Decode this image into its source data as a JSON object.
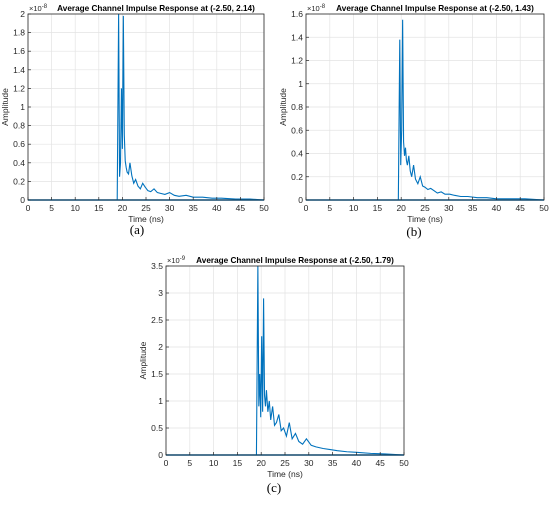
{
  "chart_data": [
    {
      "type": "line",
      "panel_label": "(a)",
      "title": "Average Channel Impulse Response at (-2.50, 2.14)",
      "xlabel": "Time (ns)",
      "ylabel": "Amplitude",
      "y_exponent_label": "×10",
      "y_exponent": "-8",
      "xlim": [
        0,
        50
      ],
      "ylim": [
        0,
        2
      ],
      "xticks": [
        "0",
        "5",
        "10",
        "15",
        "20",
        "25",
        "30",
        "35",
        "40",
        "45",
        "50"
      ],
      "yticks": [
        "0",
        "0.2",
        "0.4",
        "0.6",
        "0.8",
        "1",
        "1.2",
        "1.4",
        "1.6",
        "1.8",
        "2"
      ],
      "grid": true,
      "line_color": "#0072BD",
      "series": [
        {
          "x": [
            0,
            5,
            10,
            15,
            18.9,
            19.2,
            19.4,
            19.6,
            19.8,
            20.0,
            20.2,
            20.4,
            20.6,
            20.8,
            21.0,
            21.3,
            21.6,
            22.0,
            22.4,
            22.8,
            23.3,
            23.8,
            24.3,
            24.8,
            25.4,
            26.0,
            26.7,
            27.4,
            28.2,
            29.0,
            30.0,
            31.0,
            32.0,
            33.5,
            35.0,
            37.0,
            39.0,
            41.0,
            44.0,
            47.0,
            50.0
          ],
          "y": [
            0,
            0,
            0,
            0,
            0,
            2.0,
            0.25,
            0.4,
            1.2,
            0.55,
            1.98,
            0.7,
            0.42,
            0.35,
            0.3,
            0.28,
            0.4,
            0.26,
            0.18,
            0.22,
            0.15,
            0.12,
            0.18,
            0.14,
            0.1,
            0.09,
            0.12,
            0.08,
            0.07,
            0.06,
            0.08,
            0.05,
            0.04,
            0.05,
            0.03,
            0.03,
            0.02,
            0.02,
            0.01,
            0.01,
            0
          ]
        }
      ]
    },
    {
      "type": "line",
      "panel_label": "(b)",
      "title": "Average Channel Impulse Response at (-2.50, 1.43)",
      "xlabel": "Time (ns)",
      "ylabel": "Amplitude",
      "y_exponent_label": "×10",
      "y_exponent": "-8",
      "xlim": [
        0,
        50
      ],
      "ylim": [
        0,
        1.6
      ],
      "xticks": [
        "0",
        "5",
        "10",
        "15",
        "20",
        "25",
        "30",
        "35",
        "40",
        "45",
        "50"
      ],
      "yticks": [
        "0",
        "0.2",
        "0.4",
        "0.6",
        "0.8",
        "1",
        "1.2",
        "1.4",
        "1.6"
      ],
      "grid": true,
      "line_color": "#0072BD",
      "series": [
        {
          "x": [
            0,
            5,
            10,
            15,
            19.4,
            19.7,
            19.9,
            20.1,
            20.3,
            20.5,
            20.7,
            20.9,
            21.1,
            21.3,
            21.6,
            21.9,
            22.2,
            22.6,
            23.0,
            23.5,
            24.0,
            24.5,
            25.0,
            25.6,
            26.2,
            26.9,
            27.6,
            28.4,
            29.2,
            30.2,
            31.2,
            32.5,
            34.0,
            36.0,
            38.0,
            40.0,
            43.0,
            46.0,
            50.0
          ],
          "y": [
            0,
            0,
            0,
            0,
            0,
            1.38,
            0.3,
            0.6,
            1.55,
            0.5,
            0.38,
            0.45,
            0.34,
            0.3,
            0.38,
            0.25,
            0.2,
            0.3,
            0.18,
            0.14,
            0.2,
            0.12,
            0.11,
            0.09,
            0.1,
            0.08,
            0.06,
            0.07,
            0.05,
            0.05,
            0.04,
            0.03,
            0.03,
            0.02,
            0.02,
            0.01,
            0.01,
            0.01,
            0
          ]
        }
      ]
    },
    {
      "type": "line",
      "panel_label": "(c)",
      "title": "Average Channel Impulse Response at (-2.50, 1.79)",
      "xlabel": "Time (ns)",
      "ylabel": "Amplitude",
      "y_exponent_label": "×10",
      "y_exponent": "-9",
      "xlim": [
        0,
        50
      ],
      "ylim": [
        0,
        3.5
      ],
      "xticks": [
        "0",
        "5",
        "10",
        "15",
        "20",
        "25",
        "30",
        "35",
        "40",
        "45",
        "50"
      ],
      "yticks": [
        "0",
        "0.5",
        "1",
        "1.5",
        "2",
        "2.5",
        "3",
        "3.5"
      ],
      "grid": true,
      "line_color": "#0072BD",
      "series": [
        {
          "x": [
            0,
            5,
            10,
            15,
            19.0,
            19.3,
            19.5,
            19.7,
            19.9,
            20.1,
            20.3,
            20.5,
            20.7,
            20.9,
            21.1,
            21.4,
            21.7,
            22.0,
            22.4,
            22.8,
            23.2,
            23.7,
            24.2,
            24.7,
            25.3,
            25.9,
            26.5,
            27.2,
            27.9,
            28.7,
            29.5,
            30.5,
            31.5,
            33.0,
            34.5,
            36.0,
            38.0,
            40.0,
            43.0,
            46.0,
            50.0
          ],
          "y": [
            0,
            0,
            0,
            0,
            0,
            3.5,
            0.9,
            1.5,
            0.7,
            2.2,
            0.8,
            2.9,
            1.1,
            0.9,
            1.2,
            0.8,
            1.0,
            0.65,
            0.9,
            0.55,
            0.6,
            0.75,
            0.45,
            0.5,
            0.35,
            0.6,
            0.3,
            0.4,
            0.25,
            0.2,
            0.3,
            0.18,
            0.15,
            0.12,
            0.1,
            0.08,
            0.06,
            0.05,
            0.03,
            0.02,
            0
          ]
        }
      ]
    }
  ]
}
